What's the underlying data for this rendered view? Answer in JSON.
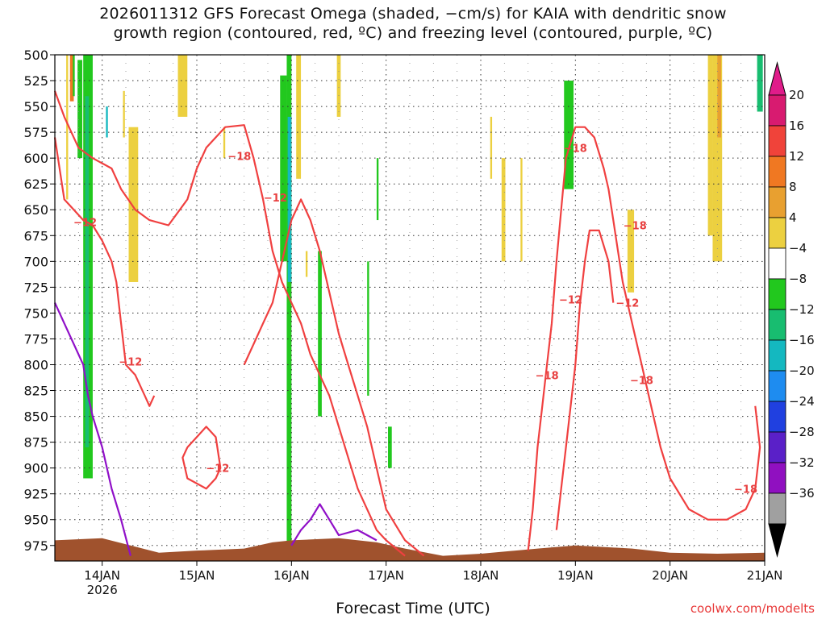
{
  "chart_data": {
    "type": "heatmap",
    "title": "2026011312 GFS Forecast Omega (shaded, −cm/s) for KAIA with dendritic snow",
    "subtitle": "growth region (contoured, red, ºC) and freezing level (contoured, purple, ºC)",
    "xlabel": "Forecast Time (UTC)",
    "credit": "coolwx.com/modelts",
    "y_axis": {
      "ticks": [
        500,
        525,
        550,
        575,
        600,
        625,
        650,
        675,
        700,
        725,
        750,
        775,
        800,
        825,
        850,
        875,
        900,
        925,
        950,
        975
      ],
      "ylim": [
        500,
        990
      ],
      "inverted": true
    },
    "x_axis": {
      "ticks": [
        {
          "day": 14,
          "label": "14JAN",
          "sub": "2026"
        },
        {
          "day": 15,
          "label": "15JAN"
        },
        {
          "day": 16,
          "label": "16JAN"
        },
        {
          "day": 17,
          "label": "17JAN"
        },
        {
          "day": 18,
          "label": "18JAN"
        },
        {
          "day": 19,
          "label": "19JAN"
        },
        {
          "day": 20,
          "label": "20JAN"
        },
        {
          "day": 21,
          "label": "21JAN"
        }
      ],
      "xlim": [
        13.5,
        21.0
      ]
    },
    "grid": true,
    "colorbar": {
      "labels": [
        "20",
        "16",
        "12",
        "8",
        "4",
        "−4",
        "−8",
        "−12",
        "−16",
        "−20",
        "−24",
        "−28",
        "−32",
        "−36"
      ],
      "colors": [
        "#d81b70",
        "#f0433a",
        "#f07822",
        "#e8a030",
        "#ecd040",
        "#ffffff",
        "#22c81e",
        "#18bd70",
        "#14b8c0",
        "#1e8cf0",
        "#2040e0",
        "#5a20c8",
        "#9010c0",
        "#a0a0a0"
      ],
      "top_color": "#e01c8a",
      "bottom_color": "#000000"
    },
    "omega_regions": [
      {
        "x": [
          13.62,
          13.64
        ],
        "p": [
          500,
          640
        ],
        "color": "#ecd040"
      },
      {
        "x": [
          13.66,
          13.7
        ],
        "p": [
          500,
          545
        ],
        "color": "#f07822"
      },
      {
        "x": [
          13.69,
          13.71
        ],
        "p": [
          500,
          540
        ],
        "color": "#22c81e"
      },
      {
        "x": [
          13.74,
          13.79
        ],
        "p": [
          505,
          600
        ],
        "color": "#22c81e"
      },
      {
        "x": [
          13.8,
          13.9
        ],
        "p": [
          500,
          910
        ],
        "color": "#22c81e"
      },
      {
        "x": [
          13.82,
          13.86
        ],
        "p": [
          540,
          880
        ],
        "color": "#18bd70"
      },
      {
        "x": [
          14.04,
          14.06
        ],
        "p": [
          550,
          580
        ],
        "color": "#14b8c0"
      },
      {
        "x": [
          14.22,
          14.24
        ],
        "p": [
          535,
          580
        ],
        "color": "#ecd040"
      },
      {
        "x": [
          14.28,
          14.38
        ],
        "p": [
          570,
          720
        ],
        "color": "#ecd040"
      },
      {
        "x": [
          14.8,
          14.9
        ],
        "p": [
          500,
          560
        ],
        "color": "#ecd040"
      },
      {
        "x": [
          15.28,
          15.3
        ],
        "p": [
          570,
          600
        ],
        "color": "#ecd040"
      },
      {
        "x": [
          15.88,
          15.95
        ],
        "p": [
          520,
          700
        ],
        "color": "#22c81e"
      },
      {
        "x": [
          15.95,
          16.0
        ],
        "p": [
          500,
          990
        ],
        "color": "#22c81e"
      },
      {
        "x": [
          15.96,
          16.0
        ],
        "p": [
          560,
          720
        ],
        "color": "#14b8c0"
      },
      {
        "x": [
          16.05,
          16.1
        ],
        "p": [
          500,
          620
        ],
        "color": "#ecd040"
      },
      {
        "x": [
          16.15,
          16.17
        ],
        "p": [
          690,
          715
        ],
        "color": "#ecd040"
      },
      {
        "x": [
          16.28,
          16.32
        ],
        "p": [
          690,
          850
        ],
        "color": "#22c81e"
      },
      {
        "x": [
          16.48,
          16.52
        ],
        "p": [
          500,
          560
        ],
        "color": "#ecd040"
      },
      {
        "x": [
          16.8,
          16.82
        ],
        "p": [
          700,
          830
        ],
        "color": "#22c81e"
      },
      {
        "x": [
          16.9,
          16.92
        ],
        "p": [
          600,
          660
        ],
        "color": "#22c81e"
      },
      {
        "x": [
          17.02,
          17.06
        ],
        "p": [
          860,
          900
        ],
        "color": "#22c81e"
      },
      {
        "x": [
          18.1,
          18.12
        ],
        "p": [
          560,
          620
        ],
        "color": "#ecd040"
      },
      {
        "x": [
          18.22,
          18.26
        ],
        "p": [
          600,
          700
        ],
        "color": "#ecd040"
      },
      {
        "x": [
          18.42,
          18.44
        ],
        "p": [
          600,
          700
        ],
        "color": "#ecd040"
      },
      {
        "x": [
          18.88,
          18.98
        ],
        "p": [
          525,
          630
        ],
        "color": "#22c81e"
      },
      {
        "x": [
          19.55,
          19.62
        ],
        "p": [
          650,
          730
        ],
        "color": "#ecd040"
      },
      {
        "x": [
          20.4,
          20.45
        ],
        "p": [
          500,
          675
        ],
        "color": "#ecd040"
      },
      {
        "x": [
          20.45,
          20.55
        ],
        "p": [
          500,
          700
        ],
        "color": "#ecd040"
      },
      {
        "x": [
          20.5,
          20.54
        ],
        "p": [
          500,
          580
        ],
        "color": "#e8a030"
      },
      {
        "x": [
          20.92,
          20.98
        ],
        "p": [
          500,
          555
        ],
        "color": "#18bd70"
      }
    ],
    "dgz_contours": [
      {
        "points": [
          [
            13.5,
            535
          ],
          [
            13.6,
            560
          ],
          [
            13.75,
            590
          ],
          [
            13.9,
            600
          ],
          [
            14.1,
            610
          ],
          [
            14.2,
            630
          ],
          [
            14.35,
            650
          ],
          [
            14.5,
            660
          ],
          [
            14.7,
            665
          ],
          [
            14.9,
            640
          ],
          [
            15.0,
            610
          ],
          [
            15.1,
            590
          ],
          [
            15.3,
            570
          ],
          [
            15.5,
            568
          ],
          [
            15.6,
            600
          ],
          [
            15.7,
            640
          ],
          [
            15.8,
            690
          ],
          [
            15.9,
            720
          ],
          [
            16.0,
            740
          ],
          [
            16.1,
            760
          ],
          [
            16.2,
            790
          ],
          [
            16.3,
            810
          ],
          [
            16.4,
            830
          ],
          [
            16.5,
            860
          ],
          [
            16.6,
            890
          ],
          [
            16.7,
            920
          ],
          [
            16.8,
            940
          ],
          [
            16.9,
            960
          ],
          [
            17.0,
            970
          ],
          [
            17.2,
            985
          ]
        ],
        "labels": [
          {
            "text": "−18",
            "x": 15.45,
            "p": 598
          }
        ]
      },
      {
        "points": [
          [
            13.5,
            580
          ],
          [
            13.6,
            640
          ],
          [
            13.7,
            650
          ],
          [
            13.8,
            660
          ],
          [
            13.9,
            665
          ],
          [
            14.0,
            680
          ],
          [
            14.1,
            700
          ],
          [
            14.15,
            720
          ],
          [
            14.2,
            760
          ],
          [
            14.25,
            800
          ],
          [
            14.35,
            810
          ],
          [
            14.45,
            830
          ],
          [
            14.5,
            840
          ],
          [
            14.55,
            830
          ]
        ],
        "labels": [
          {
            "text": "−12",
            "x": 13.82,
            "p": 662
          },
          {
            "text": "−12",
            "x": 14.3,
            "p": 797
          }
        ]
      },
      {
        "points": [
          [
            15.5,
            800
          ],
          [
            15.6,
            780
          ],
          [
            15.7,
            760
          ],
          [
            15.8,
            740
          ],
          [
            15.9,
            700
          ],
          [
            16.0,
            660
          ],
          [
            16.1,
            640
          ],
          [
            16.2,
            660
          ],
          [
            16.3,
            690
          ],
          [
            16.4,
            730
          ],
          [
            16.5,
            770
          ],
          [
            16.6,
            800
          ],
          [
            16.7,
            830
          ],
          [
            16.8,
            860
          ],
          [
            16.9,
            900
          ],
          [
            17.0,
            940
          ],
          [
            17.2,
            970
          ],
          [
            17.4,
            985
          ]
        ],
        "labels": [
          {
            "text": "−12",
            "x": 15.83,
            "p": 638
          }
        ]
      },
      {
        "points": [
          [
            14.9,
            880
          ],
          [
            15.0,
            870
          ],
          [
            15.1,
            860
          ],
          [
            15.2,
            870
          ],
          [
            15.25,
            900
          ],
          [
            15.2,
            910
          ],
          [
            15.1,
            920
          ],
          [
            14.9,
            910
          ],
          [
            14.85,
            890
          ],
          [
            14.9,
            880
          ]
        ],
        "labels": [
          {
            "text": "−12",
            "x": 15.22,
            "p": 900
          }
        ]
      },
      {
        "points": [
          [
            18.5,
            980
          ],
          [
            18.55,
            940
          ],
          [
            18.6,
            880
          ],
          [
            18.65,
            840
          ],
          [
            18.7,
            800
          ],
          [
            18.75,
            760
          ],
          [
            18.8,
            700
          ],
          [
            18.85,
            650
          ],
          [
            18.9,
            600
          ],
          [
            19.0,
            570
          ],
          [
            19.1,
            570
          ],
          [
            19.2,
            580
          ],
          [
            19.3,
            610
          ],
          [
            19.35,
            630
          ],
          [
            19.4,
            660
          ],
          [
            19.45,
            690
          ],
          [
            19.5,
            720
          ],
          [
            19.6,
            760
          ],
          [
            19.7,
            800
          ],
          [
            19.8,
            840
          ],
          [
            19.9,
            880
          ],
          [
            20.0,
            910
          ],
          [
            20.2,
            940
          ],
          [
            20.4,
            950
          ],
          [
            20.6,
            950
          ],
          [
            20.8,
            940
          ],
          [
            20.9,
            920
          ],
          [
            20.95,
            880
          ],
          [
            20.9,
            840
          ]
        ],
        "labels": [
          {
            "text": "−18",
            "x": 18.7,
            "p": 810
          },
          {
            "text": "−18",
            "x": 19.63,
            "p": 665
          },
          {
            "text": "−18",
            "x": 19.7,
            "p": 815
          },
          {
            "text": "−18",
            "x": 20.8,
            "p": 920
          },
          {
            "text": "−18",
            "x": 19.0,
            "p": 590
          }
        ]
      },
      {
        "points": [
          [
            18.8,
            960
          ],
          [
            18.85,
            920
          ],
          [
            18.9,
            880
          ],
          [
            19.0,
            800
          ],
          [
            19.05,
            740
          ],
          [
            19.1,
            700
          ],
          [
            19.15,
            670
          ],
          [
            19.25,
            670
          ],
          [
            19.35,
            700
          ],
          [
            19.4,
            740
          ]
        ],
        "labels": [
          {
            "text": "−12",
            "x": 18.95,
            "p": 737
          },
          {
            "text": "−12",
            "x": 19.55,
            "p": 740
          }
        ]
      }
    ],
    "freezing_contours": [
      {
        "points": [
          [
            13.5,
            740
          ],
          [
            13.6,
            760
          ],
          [
            13.7,
            780
          ],
          [
            13.8,
            800
          ],
          [
            13.85,
            830
          ],
          [
            13.9,
            850
          ],
          [
            14.0,
            880
          ],
          [
            14.1,
            920
          ],
          [
            14.2,
            950
          ],
          [
            14.3,
            985
          ]
        ]
      },
      {
        "points": [
          [
            16.0,
            975
          ],
          [
            16.1,
            960
          ],
          [
            16.2,
            950
          ],
          [
            16.3,
            935
          ],
          [
            16.4,
            950
          ],
          [
            16.5,
            965
          ],
          [
            16.7,
            960
          ],
          [
            16.9,
            970
          ]
        ]
      }
    ],
    "terrain": [
      [
        13.5,
        970
      ],
      [
        14.0,
        968
      ],
      [
        14.3,
        975
      ],
      [
        14.6,
        982
      ],
      [
        15.0,
        980
      ],
      [
        15.5,
        978
      ],
      [
        15.8,
        972
      ],
      [
        16.0,
        970
      ],
      [
        16.5,
        968
      ],
      [
        16.9,
        972
      ],
      [
        17.2,
        978
      ],
      [
        17.6,
        985
      ],
      [
        18.0,
        983
      ],
      [
        18.6,
        978
      ],
      [
        19.0,
        975
      ],
      [
        19.6,
        978
      ],
      [
        20.0,
        982
      ],
      [
        20.5,
        983
      ],
      [
        21.0,
        982
      ]
    ]
  }
}
